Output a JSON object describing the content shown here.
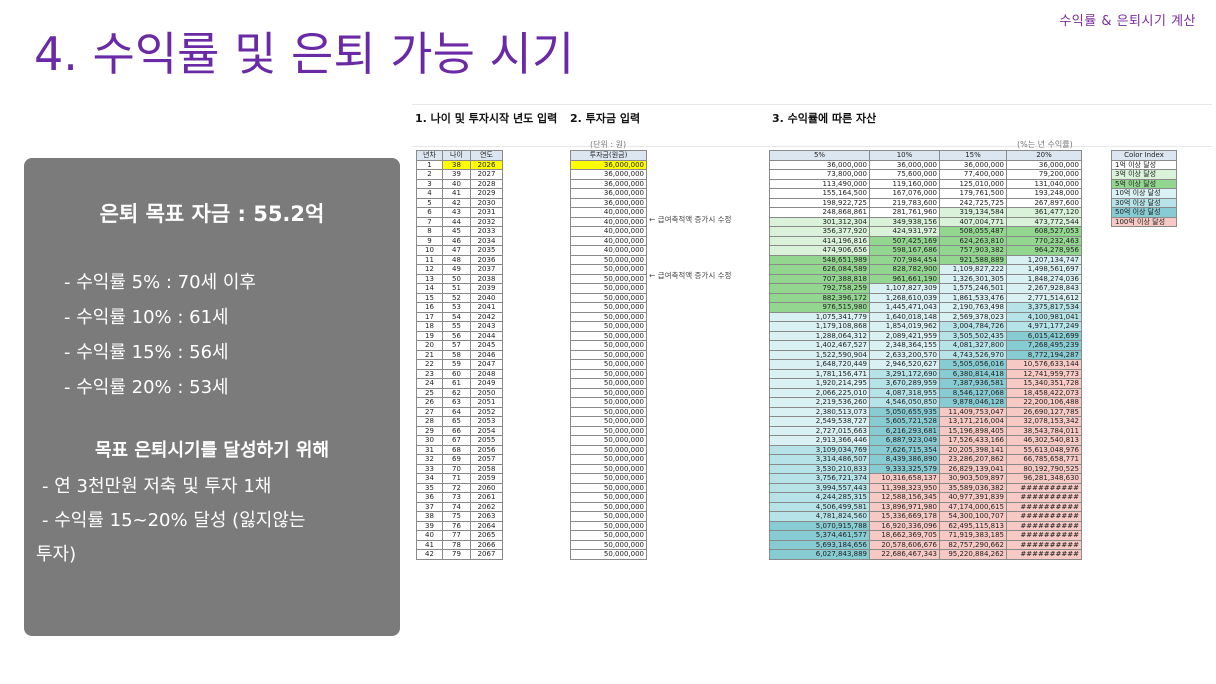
{
  "header": {
    "corner_label": "수익률 & 은퇴시기 계산",
    "title": "4. 수익률 및 은퇴 가능 시기"
  },
  "summary": {
    "goal": "은퇴 목표 자금 : 55.2억",
    "rates": [
      "- 수익률    5% : 70세 이후",
      "- 수익률 10% : 61세",
      "- 수익률 15% : 56세",
      "- 수익률 20% : 53세"
    ],
    "heading": "목표 은퇴시기를 달성하기 위해",
    "plans": [
      "- 연 3천만원 저축 및 투자 1채",
      "- 수익률 15~20% 달성 (잃지않는",
      "투자)"
    ]
  },
  "sheet": {
    "section1": "1. 나이 및 투자시작 년도 입력",
    "section2": "2. 투자금 입력",
    "section3": "3. 수익률에 따른 자산",
    "unit_label": "(단위 : 원)",
    "rate_unit_label": "(%는 년 수익률)",
    "note1": "← 급여축적액 증가시 수정",
    "note2": "← 급여축적액 증가시 수정",
    "table1_headers": [
      "년차",
      "나이",
      "연도"
    ],
    "table2_header": "투자금(원금)",
    "table3_headers": [
      "5%",
      "10%",
      "15%",
      "20%"
    ],
    "legend": {
      "title": "Color Index",
      "items": [
        {
          "label": "1억 이상 달성",
          "color": "#ffffff"
        },
        {
          "label": "3억 이상 달성",
          "color": "#d9f2d9"
        },
        {
          "label": "5억 이상 달성",
          "color": "#92d68f"
        },
        {
          "label": "10억 이상 달성",
          "color": "#daf1f3"
        },
        {
          "label": "30억 이상 달성",
          "color": "#b5e3e8"
        },
        {
          "label": "50억 이상 달성",
          "color": "#87cbd3"
        },
        {
          "label": "100억 이상 달성",
          "color": "#f7c9c4"
        }
      ]
    },
    "rows": [
      [
        "1",
        "38",
        "2026",
        "36,000,000",
        "36,000,000",
        "36,000,000",
        "36,000,000",
        "36,000,000"
      ],
      [
        "2",
        "39",
        "2027",
        "36,000,000",
        "73,800,000",
        "75,600,000",
        "77,400,000",
        "79,200,000"
      ],
      [
        "3",
        "40",
        "2028",
        "36,000,000",
        "113,490,000",
        "119,160,000",
        "125,010,000",
        "131,040,000"
      ],
      [
        "4",
        "41",
        "2029",
        "36,000,000",
        "155,164,500",
        "167,076,000",
        "179,761,500",
        "193,248,000"
      ],
      [
        "5",
        "42",
        "2030",
        "36,000,000",
        "198,922,725",
        "219,783,600",
        "242,725,725",
        "267,897,600"
      ],
      [
        "6",
        "43",
        "2031",
        "40,000,000",
        "248,868,861",
        "281,761,960",
        "319,134,584",
        "361,477,120"
      ],
      [
        "7",
        "44",
        "2032",
        "40,000,000",
        "301,312,304",
        "349,938,156",
        "407,004,771",
        "473,772,544"
      ],
      [
        "8",
        "45",
        "2033",
        "40,000,000",
        "356,377,920",
        "424,931,972",
        "508,055,487",
        "608,527,053"
      ],
      [
        "9",
        "46",
        "2034",
        "40,000,000",
        "414,196,816",
        "507,425,169",
        "624,263,810",
        "770,232,463"
      ],
      [
        "10",
        "47",
        "2035",
        "40,000,000",
        "474,906,656",
        "598,167,686",
        "757,903,382",
        "964,278,956"
      ],
      [
        "11",
        "48",
        "2036",
        "50,000,000",
        "548,651,989",
        "707,984,454",
        "921,588,889",
        "1,207,134,747"
      ],
      [
        "12",
        "49",
        "2037",
        "50,000,000",
        "626,084,589",
        "828,782,900",
        "1,109,827,222",
        "1,498,561,697"
      ],
      [
        "13",
        "50",
        "2038",
        "50,000,000",
        "707,388,818",
        "961,661,190",
        "1,326,301,305",
        "1,848,274,036"
      ],
      [
        "14",
        "51",
        "2039",
        "50,000,000",
        "792,758,259",
        "1,107,827,309",
        "1,575,246,501",
        "2,267,928,843"
      ],
      [
        "15",
        "52",
        "2040",
        "50,000,000",
        "882,396,172",
        "1,268,610,039",
        "1,861,533,476",
        "2,771,514,612"
      ],
      [
        "16",
        "53",
        "2041",
        "50,000,000",
        "976,515,980",
        "1,445,471,043",
        "2,190,763,498",
        "3,375,817,534"
      ],
      [
        "17",
        "54",
        "2042",
        "50,000,000",
        "1,075,341,779",
        "1,640,018,148",
        "2,569,378,023",
        "4,100,981,041"
      ],
      [
        "18",
        "55",
        "2043",
        "50,000,000",
        "1,179,108,868",
        "1,854,019,962",
        "3,004,784,726",
        "4,971,177,249"
      ],
      [
        "19",
        "56",
        "2044",
        "50,000,000",
        "1,288,064,312",
        "2,089,421,959",
        "3,505,502,435",
        "6,015,412,699"
      ],
      [
        "20",
        "57",
        "2045",
        "50,000,000",
        "1,402,467,527",
        "2,348,364,155",
        "4,081,327,800",
        "7,268,495,239"
      ],
      [
        "21",
        "58",
        "2046",
        "50,000,000",
        "1,522,590,904",
        "2,633,200,570",
        "4,743,526,970",
        "8,772,194,287"
      ],
      [
        "22",
        "59",
        "2047",
        "50,000,000",
        "1,648,720,449",
        "2,946,520,627",
        "5,505,056,016",
        "10,576,633,144"
      ],
      [
        "23",
        "60",
        "2048",
        "50,000,000",
        "1,781,156,471",
        "3,291,172,690",
        "6,380,814,418",
        "12,741,959,773"
      ],
      [
        "24",
        "61",
        "2049",
        "50,000,000",
        "1,920,214,295",
        "3,670,289,959",
        "7,387,936,581",
        "15,340,351,728"
      ],
      [
        "25",
        "62",
        "2050",
        "50,000,000",
        "2,066,225,010",
        "4,087,318,955",
        "8,546,127,068",
        "18,458,422,073"
      ],
      [
        "26",
        "63",
        "2051",
        "50,000,000",
        "2,219,536,260",
        "4,546,050,850",
        "9,878,046,128",
        "22,200,106,488"
      ],
      [
        "27",
        "64",
        "2052",
        "50,000,000",
        "2,380,513,073",
        "5,050,655,935",
        "11,409,753,047",
        "26,690,127,785"
      ],
      [
        "28",
        "65",
        "2053",
        "50,000,000",
        "2,549,538,727",
        "5,605,721,528",
        "13,171,216,004",
        "32,078,153,342"
      ],
      [
        "29",
        "66",
        "2054",
        "50,000,000",
        "2,727,015,663",
        "6,216,293,681",
        "15,196,898,405",
        "38,543,784,011"
      ],
      [
        "30",
        "67",
        "2055",
        "50,000,000",
        "2,913,366,446",
        "6,887,923,049",
        "17,526,433,166",
        "46,302,540,813"
      ],
      [
        "31",
        "68",
        "2056",
        "50,000,000",
        "3,109,034,769",
        "7,626,715,354",
        "20,205,398,141",
        "55,613,048,976"
      ],
      [
        "32",
        "69",
        "2057",
        "50,000,000",
        "3,314,486,507",
        "8,439,386,890",
        "23,286,207,862",
        "66,785,658,771"
      ],
      [
        "33",
        "70",
        "2058",
        "50,000,000",
        "3,530,210,833",
        "9,333,325,579",
        "26,829,139,041",
        "80,192,790,525"
      ],
      [
        "34",
        "71",
        "2059",
        "50,000,000",
        "3,756,721,374",
        "10,316,658,137",
        "30,903,509,897",
        "96,281,348,630"
      ],
      [
        "35",
        "72",
        "2060",
        "50,000,000",
        "3,994,557,443",
        "11,398,323,950",
        "35,589,036,382",
        "##########"
      ],
      [
        "36",
        "73",
        "2061",
        "50,000,000",
        "4,244,285,315",
        "12,588,156,345",
        "40,977,391,839",
        "##########"
      ],
      [
        "37",
        "74",
        "2062",
        "50,000,000",
        "4,506,499,581",
        "13,896,971,980",
        "47,174,000,615",
        "##########"
      ],
      [
        "38",
        "75",
        "2063",
        "50,000,000",
        "4,781,824,560",
        "15,336,669,178",
        "54,300,100,707",
        "##########"
      ],
      [
        "39",
        "76",
        "2064",
        "50,000,000",
        "5,070,915,788",
        "16,920,336,096",
        "62,495,115,813",
        "##########"
      ],
      [
        "40",
        "77",
        "2065",
        "50,000,000",
        "5,374,461,577",
        "18,662,369,705",
        "71,919,383,185",
        "##########"
      ],
      [
        "41",
        "78",
        "2066",
        "50,000,000",
        "5,693,184,656",
        "20,578,606,676",
        "82,757,290,662",
        "##########"
      ],
      [
        "42",
        "79",
        "2067",
        "50,000,000",
        "6,027,843,889",
        "22,686,467,343",
        "95,220,884,262",
        "##########"
      ]
    ]
  }
}
